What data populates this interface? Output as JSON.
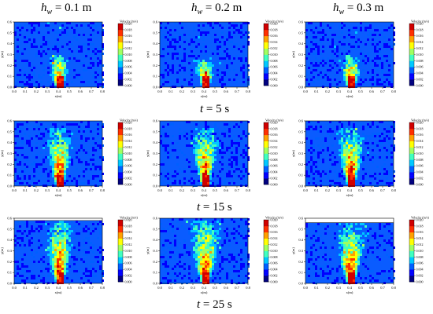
{
  "column_titles": [
    {
      "symbol": "h",
      "sub": "w",
      "rest": " = 0.1 m"
    },
    {
      "symbol": "h",
      "sub": "w",
      "rest": " = 0.2 m"
    },
    {
      "symbol": "h",
      "sub": "w",
      "rest": " = 0.3 m"
    }
  ],
  "row_labels": [
    {
      "symbol": "t",
      "rest": " = 5 s"
    },
    {
      "symbol": "t",
      "rest": " = 15 s"
    },
    {
      "symbol": "t",
      "rest": " = 25 s"
    }
  ],
  "colormap": [
    "#00007f",
    "#0000ff",
    "#0060ff",
    "#00c8ff",
    "#40ffc0",
    "#a0ff60",
    "#ffff00",
    "#ffa000",
    "#ff3000",
    "#d00000"
  ],
  "chart_data": [
    {
      "type": "heatmap",
      "panel": "hw0.1-t5",
      "hw": "0.1 m",
      "t": "5 s",
      "xlabel": "x(m)",
      "ylabel": "y(m)",
      "colorbar_title": "Velocity (m/s)",
      "xlim": [
        0,
        0.8
      ],
      "ylim": [
        0,
        0.6
      ],
      "x_ticks": [
        "0.0",
        "0.1",
        "0.2",
        "0.3",
        "0.4",
        "0.5",
        "0.6",
        "0.7",
        "0.8"
      ],
      "y_ticks": [
        "0.0",
        "0.1",
        "0.2",
        "0.3",
        "0.4",
        "0.5",
        "0.6"
      ],
      "clim": [
        0,
        0.02
      ],
      "cb_ticks": [
        "0.000",
        "0.002",
        "0.004",
        "0.006",
        "0.008",
        "0.010",
        "0.012",
        "0.014",
        "0.016",
        "0.018",
        "0.020"
      ],
      "water_depth": 0.6,
      "plume_height": 0.3,
      "plume_spread": 0.1
    },
    {
      "type": "heatmap",
      "panel": "hw0.2-t5",
      "hw": "0.2 m",
      "t": "5 s",
      "xlabel": "x(m)",
      "ylabel": "y(m)",
      "colorbar_title": "Velocity (m/s)",
      "xlim": [
        0,
        0.8
      ],
      "ylim": [
        0,
        0.6
      ],
      "x_ticks": [
        "0.0",
        "0.1",
        "0.2",
        "0.3",
        "0.4",
        "0.5",
        "0.6",
        "0.7",
        "0.8"
      ],
      "y_ticks": [
        "0.0",
        "0.1",
        "0.2",
        "0.3",
        "0.4",
        "0.5",
        "0.6"
      ],
      "clim": [
        0,
        0.02
      ],
      "cb_ticks": [
        "0.000",
        "0.002",
        "0.004",
        "0.006",
        "0.008",
        "0.010",
        "0.012",
        "0.014",
        "0.016",
        "0.018",
        "0.020"
      ],
      "water_depth": 0.6,
      "plume_height": 0.28,
      "plume_spread": 0.1
    },
    {
      "type": "heatmap",
      "panel": "hw0.3-t5",
      "hw": "0.3 m",
      "t": "5 s",
      "xlabel": "x(m)",
      "ylabel": "y(m)",
      "colorbar_title": "Velocity (m/s)",
      "xlim": [
        0,
        0.8
      ],
      "ylim": [
        0,
        0.6
      ],
      "x_ticks": [
        "0.0",
        "0.1",
        "0.2",
        "0.3",
        "0.4",
        "0.5",
        "0.6",
        "0.7",
        "0.8"
      ],
      "y_ticks": [
        "0.0",
        "0.1",
        "0.2",
        "0.3",
        "0.4",
        "0.5",
        "0.6"
      ],
      "clim": [
        0,
        0.02
      ],
      "cb_ticks": [
        "0.000",
        "0.002",
        "0.004",
        "0.006",
        "0.008",
        "0.010",
        "0.012",
        "0.014",
        "0.016",
        "0.018",
        "0.020"
      ],
      "water_depth": 0.6,
      "plume_height": 0.3,
      "plume_spread": 0.11
    },
    {
      "type": "heatmap",
      "panel": "hw0.1-t15",
      "hw": "0.1 m",
      "t": "15 s",
      "xlabel": "x(m)",
      "ylabel": "y(m)",
      "colorbar_title": "Velocity (m/s)",
      "xlim": [
        0,
        0.8
      ],
      "ylim": [
        0,
        0.6
      ],
      "x_ticks": [
        "0.0",
        "0.1",
        "0.2",
        "0.3",
        "0.4",
        "0.5",
        "0.6",
        "0.7",
        "0.8"
      ],
      "y_ticks": [
        "0.0",
        "0.1",
        "0.2",
        "0.3",
        "0.4",
        "0.5",
        "0.6"
      ],
      "clim": [
        0,
        0.02
      ],
      "cb_ticks": [
        "0.000",
        "0.002",
        "0.004",
        "0.006",
        "0.008",
        "0.010",
        "0.012",
        "0.014",
        "0.016",
        "0.018",
        "0.020"
      ],
      "water_depth": 0.6,
      "plume_height": 0.55,
      "plume_spread": 0.14
    },
    {
      "type": "heatmap",
      "panel": "hw0.2-t15",
      "hw": "0.2 m",
      "t": "15 s",
      "xlabel": "x(m)",
      "ylabel": "y(m)",
      "colorbar_title": "Velocity (m/s)",
      "xlim": [
        0,
        0.8
      ],
      "ylim": [
        0,
        0.6
      ],
      "x_ticks": [
        "0.0",
        "0.1",
        "0.2",
        "0.3",
        "0.4",
        "0.5",
        "0.6",
        "0.7",
        "0.8"
      ],
      "y_ticks": [
        "0.0",
        "0.1",
        "0.2",
        "0.3",
        "0.4",
        "0.5",
        "0.6"
      ],
      "clim": [
        0,
        0.02
      ],
      "cb_ticks": [
        "0.000",
        "0.002",
        "0.004",
        "0.006",
        "0.008",
        "0.010",
        "0.012",
        "0.014",
        "0.016",
        "0.018",
        "0.020"
      ],
      "water_depth": 0.6,
      "plume_height": 0.55,
      "plume_spread": 0.14
    },
    {
      "type": "heatmap",
      "panel": "hw0.3-t15",
      "hw": "0.3 m",
      "t": "15 s",
      "xlabel": "x(m)",
      "ylabel": "y(m)",
      "colorbar_title": "Velocity (m/s)",
      "xlim": [
        0,
        0.8
      ],
      "ylim": [
        0,
        0.6
      ],
      "x_ticks": [
        "0.0",
        "0.1",
        "0.2",
        "0.3",
        "0.4",
        "0.5",
        "0.6",
        "0.7",
        "0.8"
      ],
      "y_ticks": [
        "0.0",
        "0.1",
        "0.2",
        "0.3",
        "0.4",
        "0.5",
        "0.6"
      ],
      "clim": [
        0,
        0.02
      ],
      "cb_ticks": [
        "0.000",
        "0.002",
        "0.004",
        "0.006",
        "0.008",
        "0.010",
        "0.012",
        "0.014",
        "0.016",
        "0.018",
        "0.020"
      ],
      "water_depth": 0.6,
      "plume_height": 0.55,
      "plume_spread": 0.15
    },
    {
      "type": "heatmap",
      "panel": "hw0.1-t25",
      "hw": "0.1 m",
      "t": "25 s",
      "xlabel": "x(m)",
      "ylabel": "y(m)",
      "colorbar_title": "Velocity (m/s)",
      "xlim": [
        0,
        0.8
      ],
      "ylim": [
        0,
        0.6
      ],
      "x_ticks": [
        "0.0",
        "0.1",
        "0.2",
        "0.3",
        "0.4",
        "0.5",
        "0.6",
        "0.7",
        "0.8"
      ],
      "y_ticks": [
        "0.0",
        "0.1",
        "0.2",
        "0.3",
        "0.4",
        "0.5",
        "0.6"
      ],
      "clim": [
        0,
        0.02
      ],
      "cb_ticks": [
        "0.000",
        "0.002",
        "0.004",
        "0.006",
        "0.008",
        "0.010",
        "0.012",
        "0.014",
        "0.016",
        "0.018",
        "0.020"
      ],
      "water_depth": 0.58,
      "plume_height": 0.58,
      "plume_spread": 0.15
    },
    {
      "type": "heatmap",
      "panel": "hw0.2-t25",
      "hw": "0.2 m",
      "t": "25 s",
      "xlabel": "x(m)",
      "ylabel": "y(m)",
      "colorbar_title": "Velocity (m/s)",
      "xlim": [
        0,
        0.8
      ],
      "ylim": [
        0,
        0.6
      ],
      "x_ticks": [
        "0.0",
        "0.1",
        "0.2",
        "0.3",
        "0.4",
        "0.5",
        "0.6",
        "0.7",
        "0.8"
      ],
      "y_ticks": [
        "0.0",
        "0.1",
        "0.2",
        "0.3",
        "0.4",
        "0.5",
        "0.6"
      ],
      "clim": [
        0,
        0.02
      ],
      "cb_ticks": [
        "0.000",
        "0.002",
        "0.004",
        "0.006",
        "0.008",
        "0.010",
        "0.012",
        "0.014",
        "0.016",
        "0.018",
        "0.020"
      ],
      "water_depth": 0.6,
      "plume_height": 0.6,
      "plume_spread": 0.17
    },
    {
      "type": "heatmap",
      "panel": "hw0.3-t25",
      "hw": "0.3 m",
      "t": "25 s",
      "xlabel": "x(m)",
      "ylabel": "y(m)",
      "colorbar_title": "Velocity (m/s)",
      "xlim": [
        0,
        0.8
      ],
      "ylim": [
        0,
        0.6
      ],
      "x_ticks": [
        "0.0",
        "0.1",
        "0.2",
        "0.3",
        "0.4",
        "0.5",
        "0.6",
        "0.7",
        "0.8"
      ],
      "y_ticks": [
        "0.0",
        "0.1",
        "0.2",
        "0.3",
        "0.4",
        "0.5",
        "0.6"
      ],
      "clim": [
        0,
        0.02
      ],
      "cb_ticks": [
        "0.000",
        "0.002",
        "0.004",
        "0.006",
        "0.008",
        "0.010",
        "0.012",
        "0.014",
        "0.016",
        "0.018",
        "0.020"
      ],
      "water_depth": 0.56,
      "plume_height": 0.56,
      "plume_spread": 0.16
    }
  ]
}
